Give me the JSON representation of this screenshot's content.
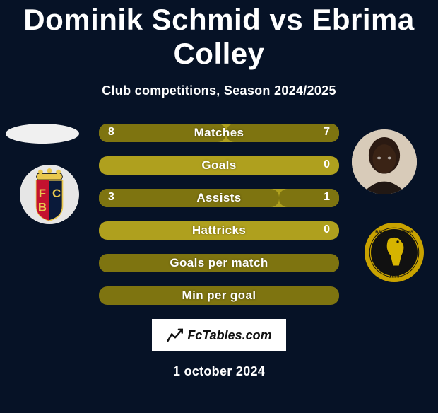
{
  "title": "Dominik Schmid vs Ebrima Colley",
  "subtitle": "Club competitions, Season 2024/2025",
  "date": "1 october 2024",
  "brand": "FcTables.com",
  "colors": {
    "bg": "#061226",
    "bar_base": "#afa01e",
    "bar_fill": "#7e7410",
    "text": "#ffffff"
  },
  "stats": [
    {
      "label": "Matches",
      "left_val": "8",
      "right_val": "7",
      "left_pct": 53,
      "right_pct": 47,
      "empty": false
    },
    {
      "label": "Goals",
      "left_val": "",
      "right_val": "0",
      "left_pct": 0,
      "right_pct": 0,
      "empty": false
    },
    {
      "label": "Assists",
      "left_val": "3",
      "right_val": "1",
      "left_pct": 75,
      "right_pct": 25,
      "empty": false
    },
    {
      "label": "Hattricks",
      "left_val": "",
      "right_val": "0",
      "left_pct": 0,
      "right_pct": 0,
      "empty": false
    },
    {
      "label": "Goals per match",
      "left_val": "",
      "right_val": "",
      "left_pct": 0,
      "right_pct": 0,
      "empty": true
    },
    {
      "label": "Min per goal",
      "left_val": "",
      "right_val": "",
      "left_pct": 0,
      "right_pct": 0,
      "empty": true
    }
  ],
  "players": {
    "left": {
      "name": "Dominik Schmid",
      "club": "FC Basel"
    },
    "right": {
      "name": "Ebrima Colley",
      "club": "BSC Young Boys"
    }
  },
  "badge_colors": {
    "basel": {
      "shield_top": "#0a1a3a",
      "shield_left": "#c4122f",
      "shield_right": "#0a1a3a",
      "crown": "#e9c84e",
      "bg": "#e8e8e8"
    },
    "yb": {
      "ring": "#c8a200",
      "inner": "#111111",
      "bear": "#d6b400"
    }
  }
}
